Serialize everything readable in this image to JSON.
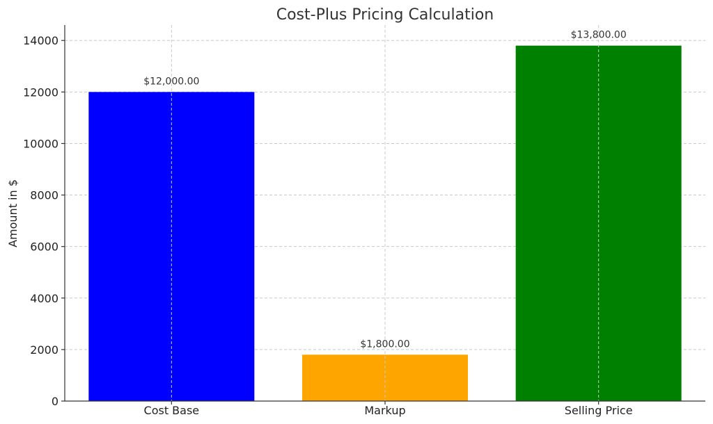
{
  "chart_data": {
    "type": "bar",
    "title": "Cost-Plus Pricing Calculation",
    "xlabel": "",
    "ylabel": "Amount in $",
    "ylim": [
      0,
      14600
    ],
    "yticks": [
      0,
      2000,
      4000,
      6000,
      8000,
      10000,
      12000,
      14000
    ],
    "grid": true,
    "categories": [
      "Cost Base",
      "Markup",
      "Selling Price"
    ],
    "values": [
      12000,
      1800,
      13800
    ],
    "data_labels": [
      "$12,000.00",
      "$1,800.00",
      "$13,800.00"
    ],
    "colors": [
      "#0000ff",
      "#ffa500",
      "#008000"
    ]
  }
}
